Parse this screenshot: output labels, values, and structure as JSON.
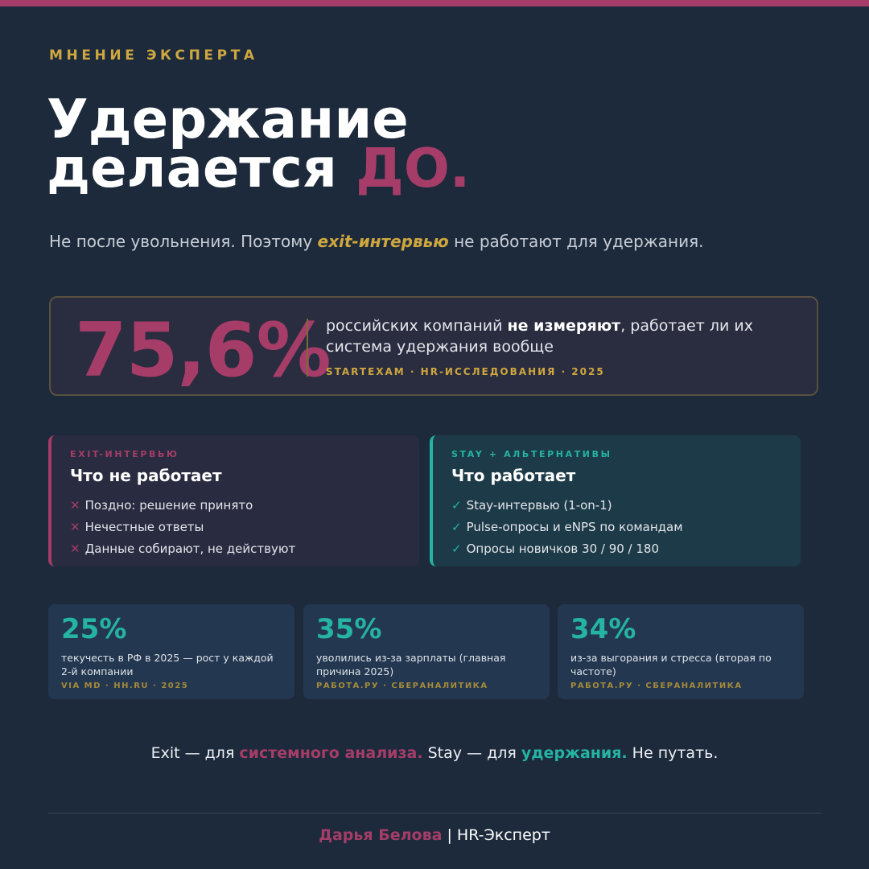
{
  "colors": {
    "accent_pink": "#a53d68",
    "accent_gold": "#cfa73f",
    "accent_teal": "#25b3a3",
    "background": "#1c2a3b"
  },
  "eyebrow": "МНЕНИЕ ЭКСПЕРТА",
  "title": {
    "line1": "Удержание",
    "line2_prefix": "делается ",
    "line2_accent": "ДО."
  },
  "subtitle": {
    "before": "Не после увольнения. Поэтому ",
    "highlight": "exit-интервью",
    "after": " не работают для удержания."
  },
  "stat": {
    "value": "75,6%",
    "text_before": "российских компаний ",
    "text_bold": "не измеряют",
    "text_after": ", работает ли их система удержания вообще",
    "source": "STARTEXAM · HR-ИССЛЕДОВАНИЯ · 2025"
  },
  "cards": {
    "bad": {
      "eyebrow": "EXIT-ИНТЕРВЬЮ",
      "title": "Что не работает",
      "mark": "✕",
      "items": [
        "Поздно: решение принято",
        "Нечестные ответы",
        "Данные собирают, не действуют"
      ]
    },
    "good": {
      "eyebrow": "STAY + АЛЬТЕРНАТИВЫ",
      "title": "Что работает",
      "mark": "✓",
      "items": [
        "Stay-интервью (1-on-1)",
        "Pulse-опросы и eNPS по командам",
        "Опросы новичков 30 / 90 / 180"
      ]
    }
  },
  "mini_stats": [
    {
      "value": "25%",
      "desc": "текучесть в РФ в 2025 — рост у каждой 2-й компании",
      "source": "VIA MD · HH.RU · 2025"
    },
    {
      "value": "35%",
      "desc": "уволились из-за зарплаты (главная причина 2025)",
      "source": "РАБОТА.РУ · СБЕРАНАЛИТИКА"
    },
    {
      "value": "34%",
      "desc": "из-за выгорания и стресса (вторая по частоте)",
      "source": "РАБОТА.РУ · СБЕРАНАЛИТИКА"
    }
  ],
  "closing": {
    "part1": "Exit — для ",
    "part2": "системного анализа.",
    "part3": " Stay — для ",
    "part4": "удержания.",
    "part5": " Не путать."
  },
  "footer": {
    "author": "Дарья Белова",
    "separator": " | ",
    "role": "HR-Эксперт"
  }
}
